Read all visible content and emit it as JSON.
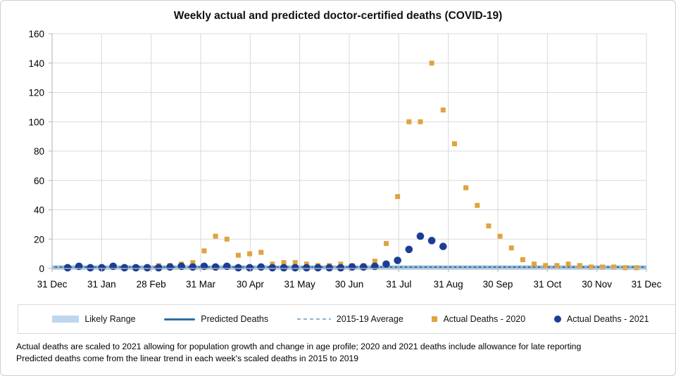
{
  "chart": {
    "title": "Weekly actual and predicted doctor-certified deaths (COVID-19)"
  },
  "chart_data": {
    "type": "scatter",
    "title": "Weekly actual and predicted doctor-certified deaths (COVID-19)",
    "xlabel": "",
    "ylabel": "",
    "ylim": [
      0,
      160
    ],
    "yticks": [
      0,
      20,
      40,
      60,
      80,
      100,
      120,
      140,
      160
    ],
    "xticks": [
      "31 Dec",
      "31 Jan",
      "28 Feb",
      "31 Mar",
      "30 Apr",
      "31 May",
      "30 Jun",
      "31 Jul",
      "31 Aug",
      "30 Sep",
      "31 Oct",
      "30 Nov",
      "31 Dec"
    ],
    "grid": true,
    "legend_position": "bottom",
    "x_unit": "week of year (weekly points)",
    "colors": {
      "grid": "#D9D9D9",
      "axis": "#BFBFBF"
    },
    "series": [
      {
        "name": "Likely Range",
        "swatch": "band",
        "color": "#BDD7EE",
        "low": -1,
        "high": 2.2
      },
      {
        "name": "Predicted Deaths",
        "swatch": "line",
        "color": "#2E6DA4",
        "value": 1
      },
      {
        "name": "2015-19 Average",
        "swatch": "dashed",
        "color": "#8EB4D8",
        "value": 1
      },
      {
        "name": "Actual Deaths - 2020",
        "swatch": "square",
        "color": "#E0A33E",
        "values": [
          1,
          1,
          0.5,
          0.5,
          1,
          0.5,
          0.5,
          1,
          2,
          2,
          3,
          4,
          12,
          22,
          20,
          9,
          10,
          11,
          3,
          4,
          4,
          3,
          2,
          2,
          3,
          2,
          2,
          5,
          17,
          49,
          100,
          100,
          140,
          108,
          85,
          55,
          43,
          29,
          22,
          14,
          6,
          3,
          2,
          2,
          3,
          2,
          1,
          1,
          1,
          0.5,
          0.5
        ]
      },
      {
        "name": "Actual Deaths - 2021",
        "swatch": "circle",
        "color": "#1B3D94",
        "values": [
          0.5,
          1.5,
          0.5,
          0.5,
          1.5,
          0.5,
          0.5,
          0.5,
          0.5,
          1,
          1.5,
          1,
          1.5,
          1,
          1.5,
          0.5,
          0.5,
          1,
          0.5,
          0.5,
          0.5,
          0.5,
          0.5,
          0.5,
          0.5,
          1,
          1,
          1.5,
          3,
          5.5,
          13,
          22,
          19,
          15
        ]
      }
    ]
  },
  "footnotes": [
    "Actual deaths are scaled to 2021 allowing for population growth and change in age profile; 2020 and 2021 deaths include allowance for late reporting",
    "Predicted deaths come from the linear trend in each week's scaled deaths in 2015 to 2019"
  ]
}
